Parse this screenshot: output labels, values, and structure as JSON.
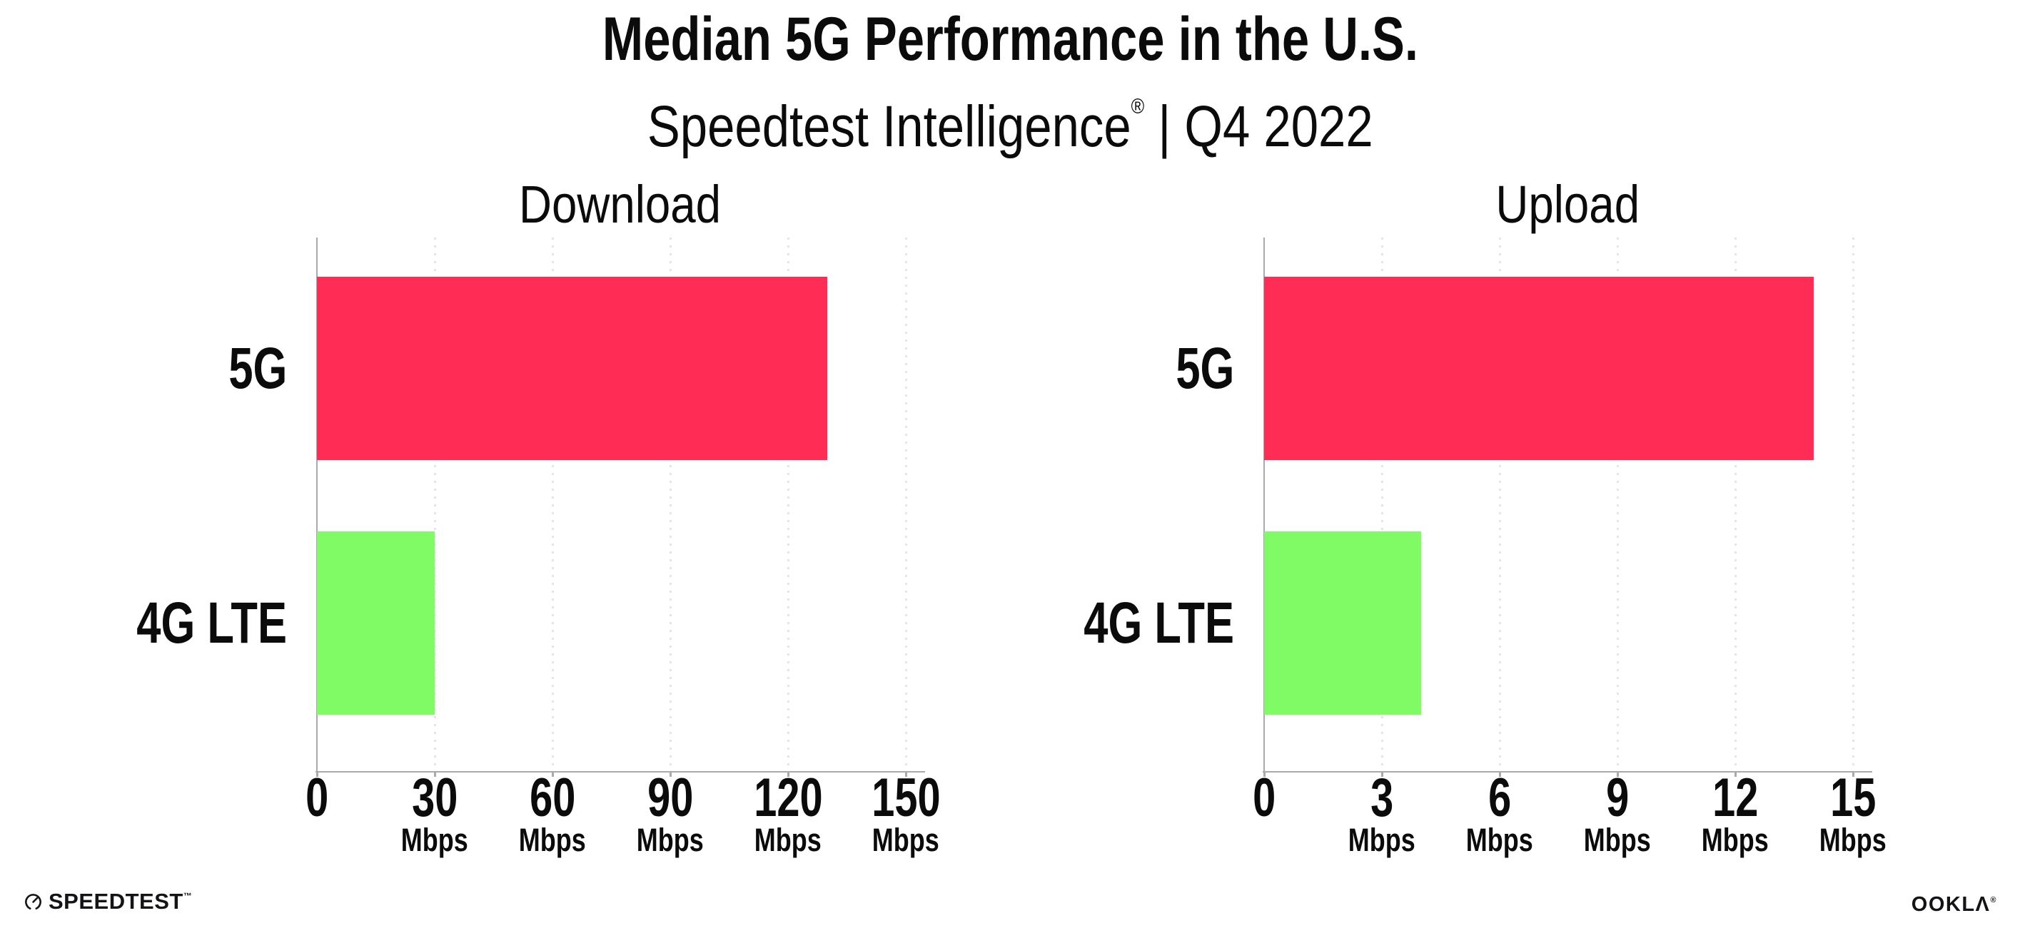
{
  "header": {
    "title": "Median 5G Performance in the U.S.",
    "subtitle_brand": "Speedtest Intelligence",
    "subtitle_reg_mark": "®",
    "subtitle_separator": " | ",
    "subtitle_period": "Q4 2022"
  },
  "chart_data": [
    {
      "type": "bar",
      "orientation": "horizontal",
      "title": "Download",
      "categories": [
        "5G",
        "4G LTE"
      ],
      "values": [
        130,
        30
      ],
      "unit": "Mbps",
      "xticks": [
        0,
        30,
        60,
        90,
        120,
        150
      ],
      "xlim": [
        0,
        154.5
      ],
      "grid": "vertical-dotted",
      "legend": "none",
      "bar_colors": [
        "#FF2D55",
        "#80FB66"
      ]
    },
    {
      "type": "bar",
      "orientation": "horizontal",
      "title": "Upload",
      "categories": [
        "5G",
        "4G LTE"
      ],
      "values": [
        14,
        4
      ],
      "unit": "Mbps",
      "xticks": [
        0,
        3,
        6,
        9,
        12,
        15
      ],
      "xlim": [
        0,
        15.45
      ],
      "grid": "vertical-dotted",
      "legend": "none",
      "bar_colors": [
        "#FF2D55",
        "#80FB66"
      ]
    }
  ],
  "footer": {
    "speedtest_logo_text": "SPEEDTEST",
    "speedtest_mark": "™",
    "ookla_logo_text": "OOKLΛ",
    "ookla_mark": "®"
  },
  "colors": {
    "bar_5g": "#FF2D55",
    "bar_4g_lte": "#80FB66",
    "axis": "#a9a9b0",
    "gridline": "#e4e4ee",
    "text": "#0b0b0c",
    "logo": "#141418"
  }
}
